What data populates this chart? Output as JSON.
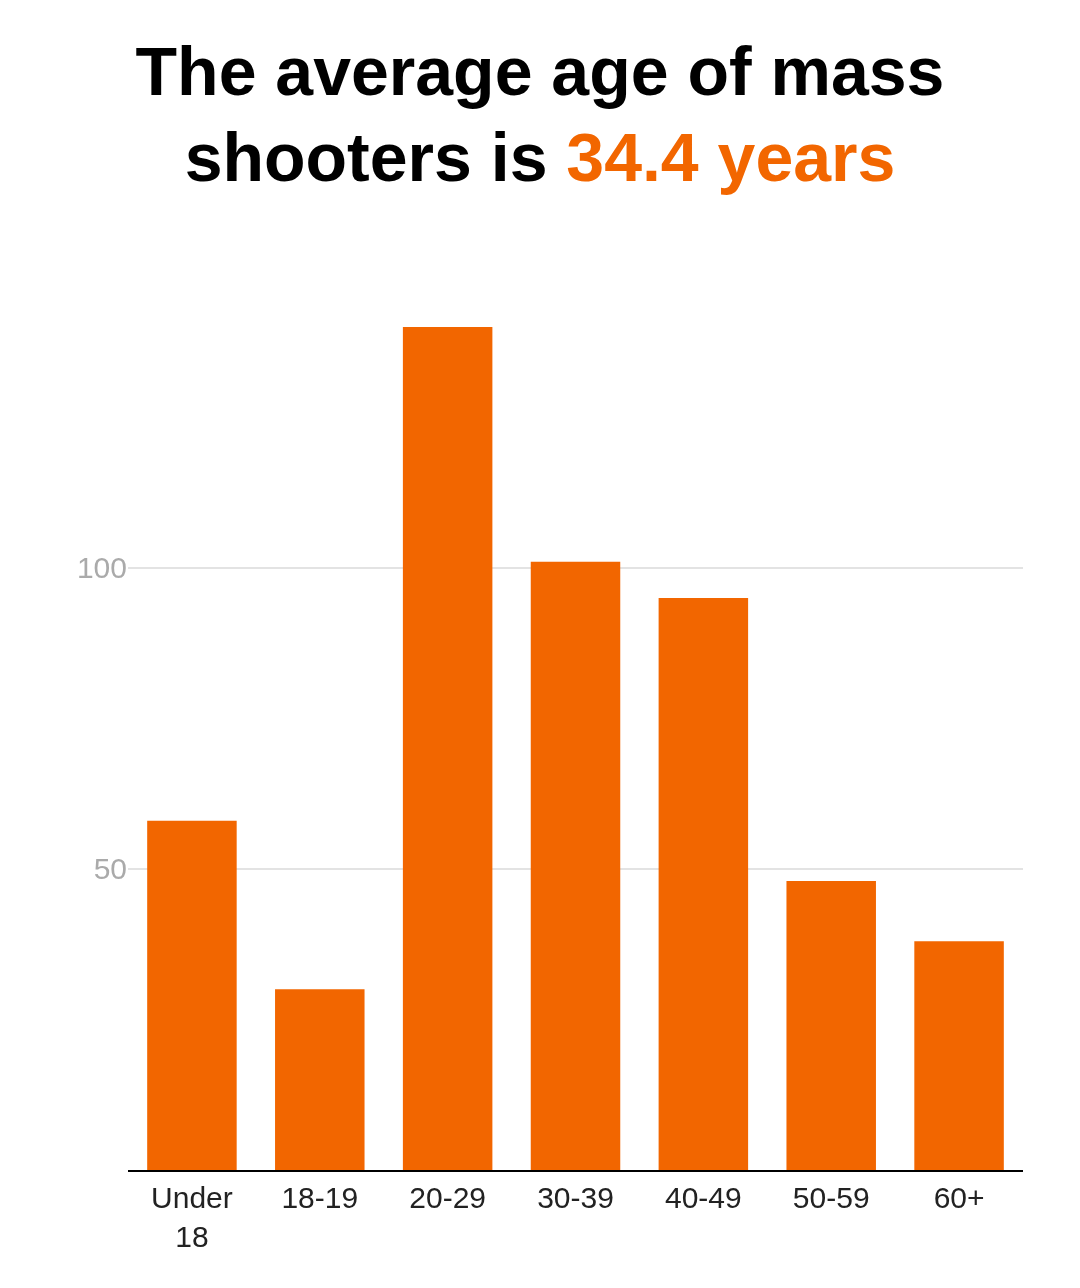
{
  "chart_data": {
    "type": "bar",
    "title": "The average age of mass shooters is 34.4 years",
    "categories": [
      "Under 18",
      "18-19",
      "20-29",
      "30-39",
      "40-49",
      "50-59",
      "60+"
    ],
    "values": [
      58,
      30,
      140,
      101,
      95,
      48,
      38
    ],
    "color": "#f26600",
    "ylim": [
      0,
      140
    ],
    "yticks": [
      50,
      100
    ],
    "grid": "y"
  }
}
